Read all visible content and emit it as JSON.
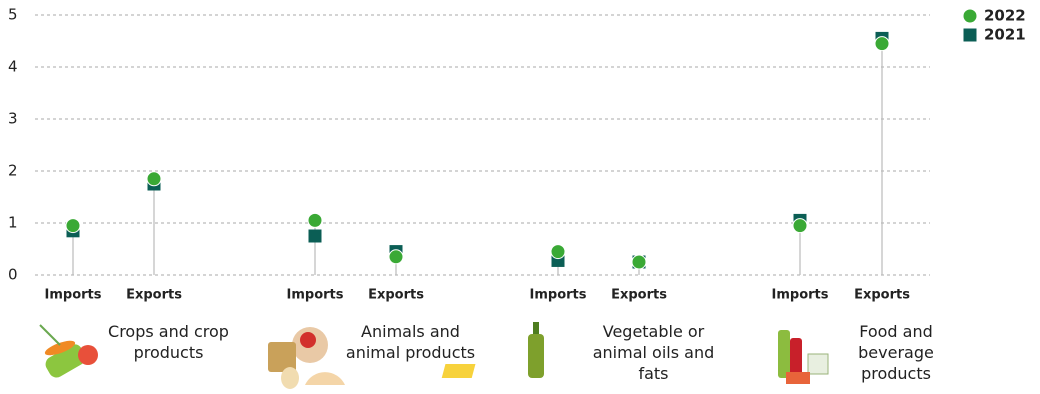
{
  "chart_data": {
    "type": "dot",
    "categories": [
      "Imports",
      "Exports",
      "Imports",
      "Exports",
      "Imports",
      "Exports",
      "Imports",
      "Exports"
    ],
    "groups": [
      "Crops and crop products",
      "Animals and animal products",
      "Vegetable or animal oils and fats",
      "Food and beverage products"
    ],
    "series": [
      {
        "name": "2022",
        "color": "#3aa935",
        "marker": "circle",
        "values": [
          0.95,
          1.85,
          1.05,
          0.35,
          0.45,
          0.25,
          0.95,
          4.45
        ]
      },
      {
        "name": "2021",
        "color": "#0b5e55",
        "marker": "square",
        "values": [
          0.85,
          1.75,
          0.75,
          0.45,
          0.28,
          0.25,
          1.05,
          4.55
        ]
      }
    ],
    "ylim": [
      0,
      5
    ],
    "yticks": [
      0,
      1,
      2,
      3,
      4,
      5
    ],
    "grid": true,
    "legend": "top-right"
  }
}
